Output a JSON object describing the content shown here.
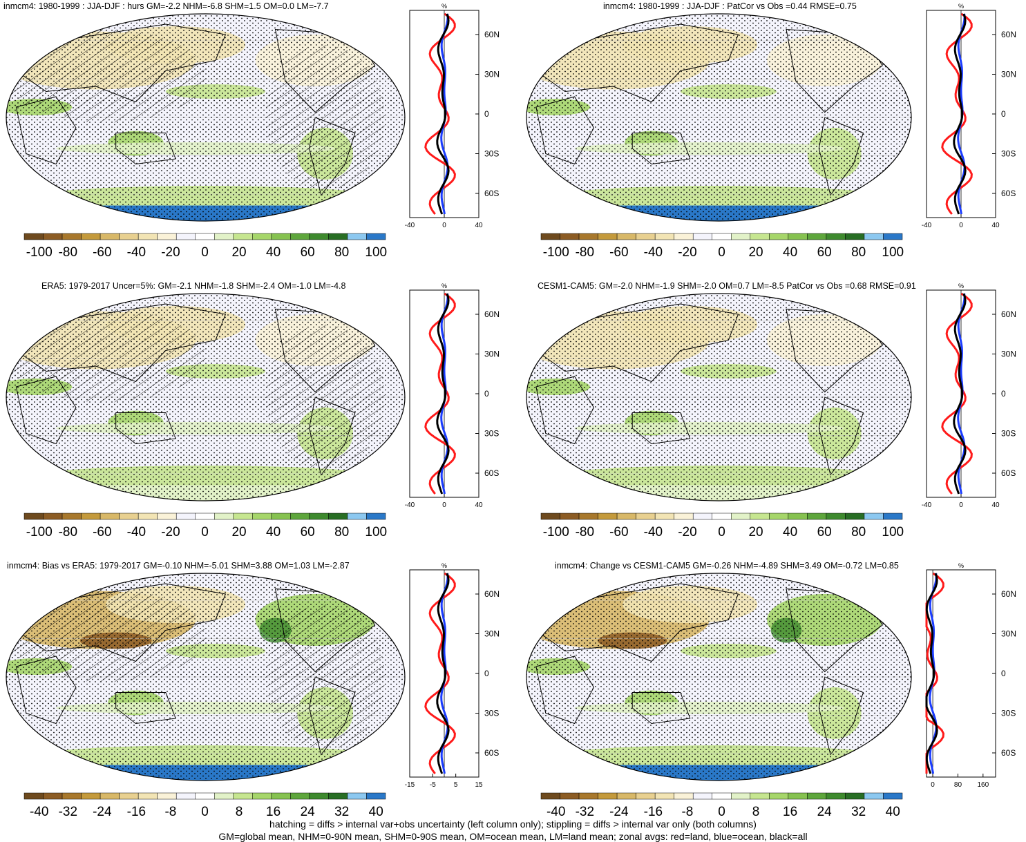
{
  "panels": [
    {
      "title": "inmcm4: 1980-1999 : JJA-DJF : hurs GM=-2.2 NHM=-6.8 SHM=1.5 OM=0.0 LM=-7.7",
      "colorbar_labels": [
        "-100",
        "-80",
        "-60",
        "-40",
        "-20",
        "0",
        "20",
        "40",
        "60",
        "80",
        "100"
      ],
      "zonal": {
        "unit": "%",
        "x_ticks": [
          "-40",
          "0",
          "40"
        ],
        "xlim": [
          -40,
          40
        ],
        "lat_labels": [
          "60N",
          "30N",
          "0",
          "30S",
          "60S"
        ]
      },
      "hatching": true
    },
    {
      "title": "inmcm4: 1980-1999 : JJA-DJF : PatCor vs Obs =0.44 RMSE=0.75",
      "colorbar_labels": [
        "-100",
        "-80",
        "-60",
        "-40",
        "-20",
        "0",
        "20",
        "40",
        "60",
        "80",
        "100"
      ],
      "zonal": {
        "unit": "%",
        "x_ticks": [
          "-40",
          "0",
          "40"
        ],
        "xlim": [
          -40,
          40
        ],
        "lat_labels": [
          "60N",
          "30N",
          "0",
          "30S",
          "60S"
        ]
      },
      "hatching": false
    },
    {
      "title": "ERA5: 1979-2017 Uncer=5%: GM=-2.1 NHM=-1.8 SHM=-2.4 OM=-1.0 LM=-4.8",
      "colorbar_labels": [
        "-100",
        "-80",
        "-60",
        "-40",
        "-20",
        "0",
        "20",
        "40",
        "60",
        "80",
        "100"
      ],
      "zonal": {
        "unit": "%",
        "x_ticks": [
          "-40",
          "0",
          "40"
        ],
        "xlim": [
          -40,
          40
        ],
        "lat_labels": [
          "60N",
          "30N",
          "0",
          "30S",
          "60S"
        ]
      },
      "hatching": true
    },
    {
      "title": "CESM1-CAM5: GM=-2.0 NHM=-1.9 SHM=-2.0 OM=0.7 LM=-8.5 PatCor vs Obs =0.68 RMSE=0.91",
      "colorbar_labels": [
        "-100",
        "-80",
        "-60",
        "-40",
        "-20",
        "0",
        "20",
        "40",
        "60",
        "80",
        "100"
      ],
      "zonal": {
        "unit": "%",
        "x_ticks": [
          "-40",
          "0",
          "40"
        ],
        "xlim": [
          -40,
          40
        ],
        "lat_labels": [
          "60N",
          "30N",
          "0",
          "30S",
          "60S"
        ]
      },
      "hatching": false
    },
    {
      "title": "inmcm4: Bias vs ERA5: 1979-2017 GM=-0.10 NHM=-5.01 SHM=3.88 OM=1.03 LM=-2.87",
      "colorbar_labels": [
        "-40",
        "-32",
        "-24",
        "-16",
        "-8",
        "0",
        "8",
        "16",
        "24",
        "32",
        "40"
      ],
      "zonal": {
        "unit": "%",
        "x_ticks": [
          "-15",
          "-5",
          "5",
          "15"
        ],
        "xlim": [
          -15,
          15
        ],
        "lat_labels": [
          "60N",
          "30N",
          "0",
          "30S",
          "60S"
        ]
      },
      "hatching": true
    },
    {
      "title": "inmcm4: Change vs CESM1-CAM5 GM=-0.26 NHM=-4.89 SHM=3.49 OM=-0.72 LM=0.85",
      "colorbar_labels": [
        "-40",
        "-32",
        "-24",
        "-16",
        "-8",
        "0",
        "8",
        "16",
        "24",
        "32",
        "40"
      ],
      "zonal": {
        "unit": "%",
        "x_ticks": [
          "0",
          "80",
          "160"
        ],
        "xlim": [
          -20,
          200
        ],
        "lat_labels": [
          "60N",
          "30N",
          "0",
          "30S",
          "60S"
        ]
      },
      "hatching": false
    }
  ],
  "colors": {
    "colorbar": [
      "#6e4a1e",
      "#8c5c24",
      "#a8782c",
      "#c49a3c",
      "#d8b868",
      "#e8d090",
      "#f2e4b4",
      "#faf2d8",
      "#f4f4fc",
      "#ffffff",
      "#e2f2c8",
      "#c6e690",
      "#a6d66a",
      "#86c250",
      "#5ea63c",
      "#3e8a2e",
      "#286e24",
      "#8cc8f0",
      "#2a78c8"
    ],
    "land_line": "#ff1a1a",
    "ocean_line": "#1a3cff",
    "all_line": "#000000",
    "ocean_base": "#f4f4fc",
    "antarctic": "#2a78c8"
  },
  "footer": {
    "line1": "hatching = diffs > internal var+obs uncertainty (left column only); stippling = diffs > internal var only (both columns)",
    "line2": "GM=global mean, NHM=0-90N mean, SHM=0-90S mean, OM=ocean mean, LM=land mean; zonal avgs: red=land, blue=ocean, black=all"
  }
}
